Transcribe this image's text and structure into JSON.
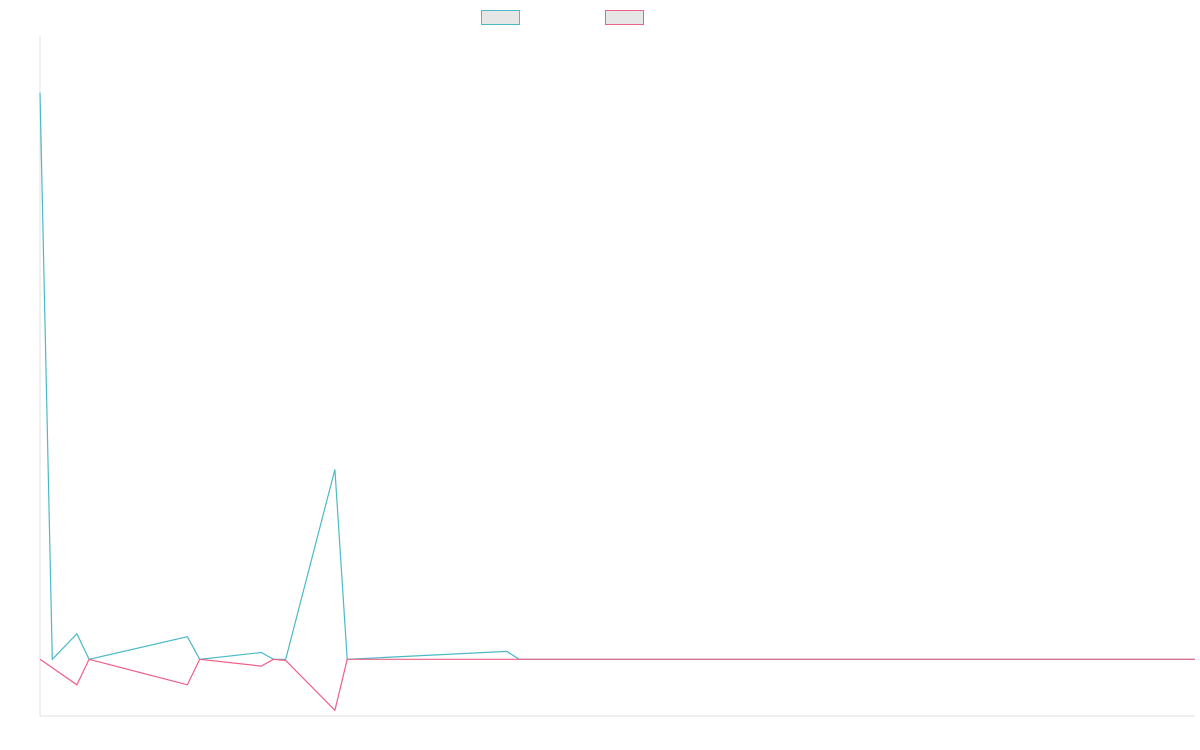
{
  "chart_data": {
    "type": "line",
    "title": "",
    "xlabel": "",
    "ylabel": "",
    "x_count": 95,
    "ylim": [
      -100,
      1100
    ],
    "legend": "top-center",
    "grid": false,
    "series": [
      {
        "color": "#4bb9c8",
        "points": [
          [
            0,
            1000
          ],
          [
            1,
            0
          ],
          [
            3,
            45
          ],
          [
            4,
            0
          ],
          [
            12,
            40
          ],
          [
            13,
            0
          ],
          [
            18,
            12
          ],
          [
            19,
            0
          ],
          [
            20,
            0
          ],
          [
            24,
            335
          ],
          [
            25,
            0
          ],
          [
            38,
            14
          ],
          [
            39,
            0
          ],
          [
            94,
            0
          ]
        ]
      },
      {
        "color": "#ee6088",
        "points": [
          [
            0,
            0
          ],
          [
            3,
            -45
          ],
          [
            4,
            0
          ],
          [
            12,
            -45
          ],
          [
            13,
            0
          ],
          [
            18,
            -12
          ],
          [
            19,
            0
          ],
          [
            20,
            -2
          ],
          [
            24,
            -90
          ],
          [
            25,
            0
          ],
          [
            94,
            0
          ]
        ]
      }
    ]
  }
}
